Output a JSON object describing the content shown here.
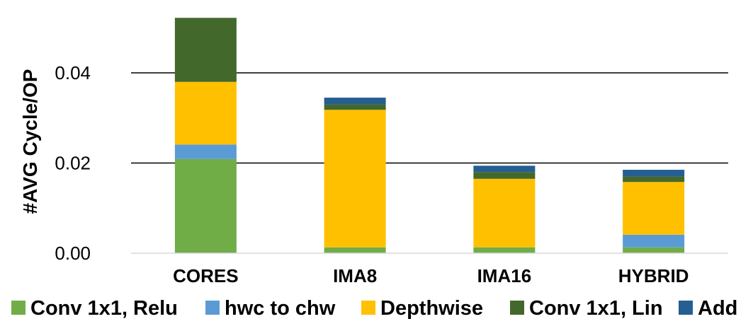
{
  "chart_data": {
    "type": "bar",
    "stacked": true,
    "title": "",
    "xlabel": "",
    "ylabel": "#AVG Cycle/OP",
    "ylim": [
      0,
      0.052
    ],
    "yticks": [
      0.0,
      0.02,
      0.04
    ],
    "ytick_labels": [
      "0.00",
      "0.02",
      "0.04"
    ],
    "grid": true,
    "legend_position": "bottom",
    "categories": [
      "CORES",
      "IMA8",
      "IMA16",
      "HYBRID"
    ],
    "series": [
      {
        "name": "Conv 1x1, Relu",
        "color": "#70ad47",
        "values": [
          0.0209,
          0.0013,
          0.0013,
          0.0013
        ]
      },
      {
        "name": "hwc to chw",
        "color": "#5b9bd5",
        "values": [
          0.0032,
          0.0,
          0.0,
          0.0028
        ]
      },
      {
        "name": "Depthwise",
        "color": "#ffc000",
        "values": [
          0.0139,
          0.0305,
          0.0152,
          0.0117
        ]
      },
      {
        "name": "Conv 1x1, Lin",
        "color": "#43682b",
        "values": [
          0.0142,
          0.0012,
          0.0015,
          0.0012
        ]
      },
      {
        "name": "Add",
        "color": "#255e91",
        "values": [
          0.0,
          0.0015,
          0.0014,
          0.0015
        ]
      }
    ]
  }
}
